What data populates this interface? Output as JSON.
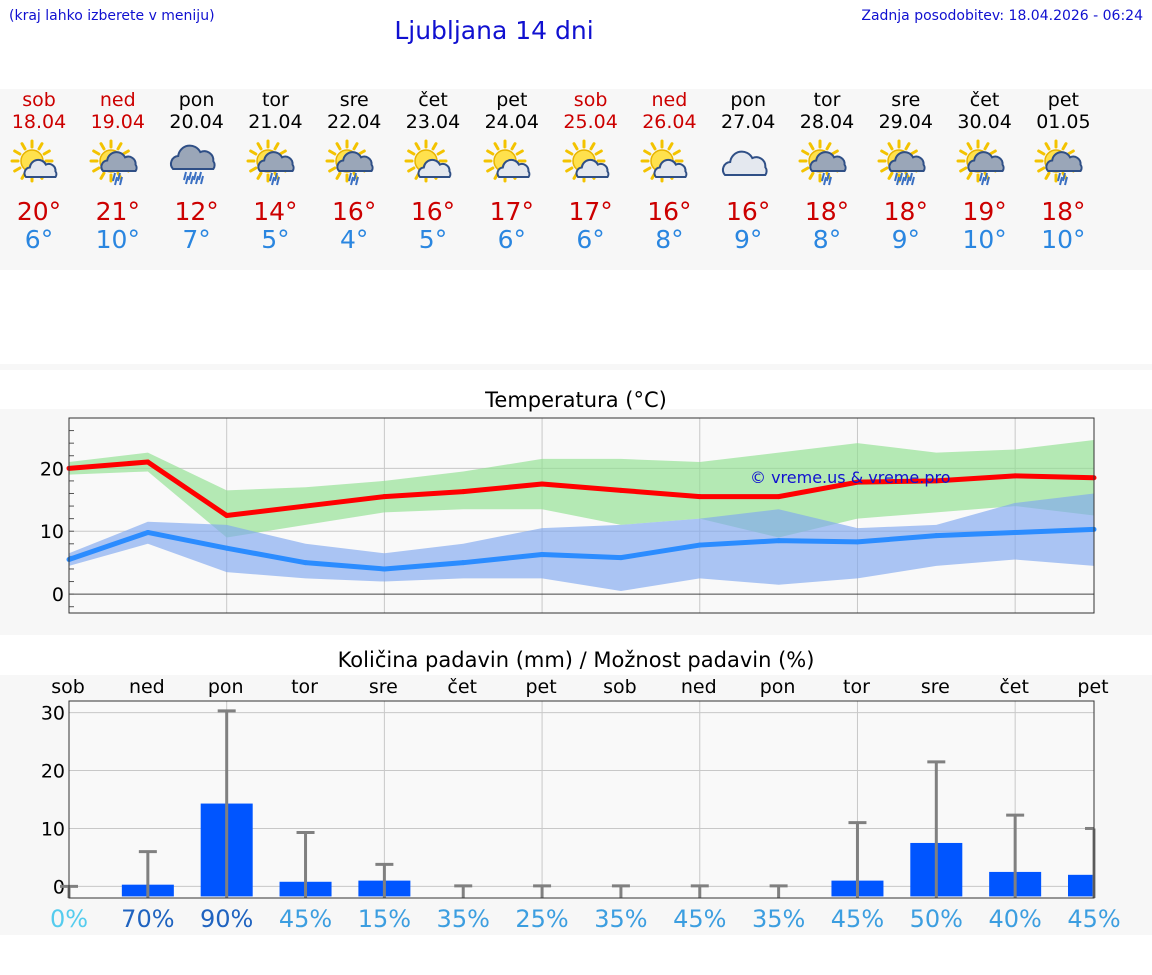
{
  "header": {
    "menu_note": "(kraj lahko izberete v meniju)",
    "title": "Ljubljana 14 dni",
    "updated": "Zadnja posodobitev: 18.04.2026 - 06:24"
  },
  "days": [
    {
      "name": "sob",
      "date": "18.04",
      "icon": "sun-cloud-icon",
      "max": "20°",
      "min": "6°",
      "weekend": true
    },
    {
      "name": "ned",
      "date": "19.04",
      "icon": "sun-cloud-rain-icon",
      "max": "21°",
      "min": "10°",
      "weekend": true
    },
    {
      "name": "pon",
      "date": "20.04",
      "icon": "cloud-heavy-rain-icon",
      "max": "12°",
      "min": "7°",
      "weekend": false
    },
    {
      "name": "tor",
      "date": "21.04",
      "icon": "sun-cloud-rain-icon",
      "max": "14°",
      "min": "5°",
      "weekend": false
    },
    {
      "name": "sre",
      "date": "22.04",
      "icon": "sun-cloud-rain-icon",
      "max": "16°",
      "min": "4°",
      "weekend": false
    },
    {
      "name": "čet",
      "date": "23.04",
      "icon": "sun-cloud-icon",
      "max": "16°",
      "min": "5°",
      "weekend": false
    },
    {
      "name": "pet",
      "date": "24.04",
      "icon": "sun-cloud-icon",
      "max": "17°",
      "min": "6°",
      "weekend": false
    },
    {
      "name": "sob",
      "date": "25.04",
      "icon": "sun-cloud-icon",
      "max": "17°",
      "min": "6°",
      "weekend": true
    },
    {
      "name": "ned",
      "date": "26.04",
      "icon": "sun-cloud-icon",
      "max": "16°",
      "min": "8°",
      "weekend": true
    },
    {
      "name": "pon",
      "date": "27.04",
      "icon": "cloud-icon",
      "max": "16°",
      "min": "9°",
      "weekend": false
    },
    {
      "name": "tor",
      "date": "28.04",
      "icon": "sun-cloud-rain-icon",
      "max": "18°",
      "min": "8°",
      "weekend": false
    },
    {
      "name": "sre",
      "date": "29.04",
      "icon": "sun-cloud-heavy-rain-icon",
      "max": "18°",
      "min": "9°",
      "weekend": false
    },
    {
      "name": "čet",
      "date": "30.04",
      "icon": "sun-cloud-rain-icon",
      "max": "19°",
      "min": "10°",
      "weekend": false
    },
    {
      "name": "pet",
      "date": "01.05",
      "icon": "sun-cloud-rain-icon",
      "max": "18°",
      "min": "10°",
      "weekend": false
    }
  ],
  "watermark": "© vreme.us & vreme.pro",
  "chart_data": [
    {
      "type": "line",
      "title": "Temperatura (°C)",
      "ylim": [
        -3,
        28
      ],
      "yticks": [
        0,
        10,
        20
      ],
      "x": [
        "18.04",
        "19.04",
        "20.04",
        "21.04",
        "22.04",
        "23.04",
        "24.04",
        "25.04",
        "26.04",
        "27.04",
        "28.04",
        "29.04",
        "30.04",
        "01.05"
      ],
      "series": [
        {
          "name": "max",
          "color": "#ff0000",
          "values": [
            20,
            21,
            12.5,
            14,
            15.5,
            16.3,
            17.5,
            16.5,
            15.5,
            15.5,
            17.8,
            18,
            18.8,
            18.5
          ]
        },
        {
          "name": "min",
          "color": "#2b8cff",
          "values": [
            5.5,
            9.8,
            7.3,
            5,
            4,
            5,
            6.3,
            5.8,
            7.8,
            8.5,
            8.3,
            9.3,
            9.8,
            10.3
          ]
        }
      ],
      "bands": [
        {
          "name": "max-range",
          "color": "#8fe08f",
          "lower": [
            19,
            19.5,
            9,
            11,
            13,
            13.5,
            13.5,
            11,
            12,
            9,
            12,
            13,
            14,
            12.5
          ],
          "upper": [
            21,
            22.5,
            16.5,
            17,
            18,
            19.5,
            21.5,
            21.5,
            21,
            22.5,
            24,
            22.5,
            23,
            24.5
          ]
        },
        {
          "name": "min-range",
          "color": "#7fa8f0",
          "lower": [
            4.5,
            8,
            3.5,
            2.5,
            2,
            2.5,
            2.5,
            0.5,
            2.5,
            1.5,
            2.5,
            4.5,
            5.5,
            4.5
          ],
          "upper": [
            6.5,
            11.5,
            11,
            8,
            6.5,
            8,
            10.5,
            11,
            12,
            13.5,
            10.5,
            11,
            14.5,
            16
          ]
        }
      ]
    },
    {
      "type": "bar",
      "title": "Količina padavin (mm) / Možnost padavin (%)",
      "ylim": [
        -2,
        32
      ],
      "yticks": [
        0,
        10,
        20,
        30
      ],
      "categories": [
        "sob",
        "ned",
        "pon",
        "tor",
        "sre",
        "čet",
        "pet",
        "sob",
        "ned",
        "pon",
        "tor",
        "sre",
        "čet",
        "pet"
      ],
      "values": [
        0,
        0.3,
        14.3,
        0.8,
        1,
        0,
        0,
        0,
        0,
        0,
        1,
        7.5,
        2.5,
        2
      ],
      "error_max": [
        0,
        6,
        30.3,
        9.3,
        3.8,
        0.1,
        0.1,
        0.1,
        0.1,
        0.1,
        11,
        21.5,
        12.3,
        10
      ],
      "probability": [
        "0%",
        "70%",
        "90%",
        "45%",
        "15%",
        "35%",
        "25%",
        "35%",
        "45%",
        "35%",
        "45%",
        "50%",
        "40%",
        "45%"
      ],
      "probability_colors": [
        "#55ccee",
        "#1f63c0",
        "#1f63c0",
        "#3c9ee0",
        "#3c9ee0",
        "#3c9ee0",
        "#3c9ee0",
        "#3c9ee0",
        "#3c9ee0",
        "#3c9ee0",
        "#3c9ee0",
        "#3c9ee0",
        "#3c9ee0",
        "#3c9ee0"
      ],
      "bar_color": "#0055ff",
      "error_color": "#808080"
    }
  ]
}
